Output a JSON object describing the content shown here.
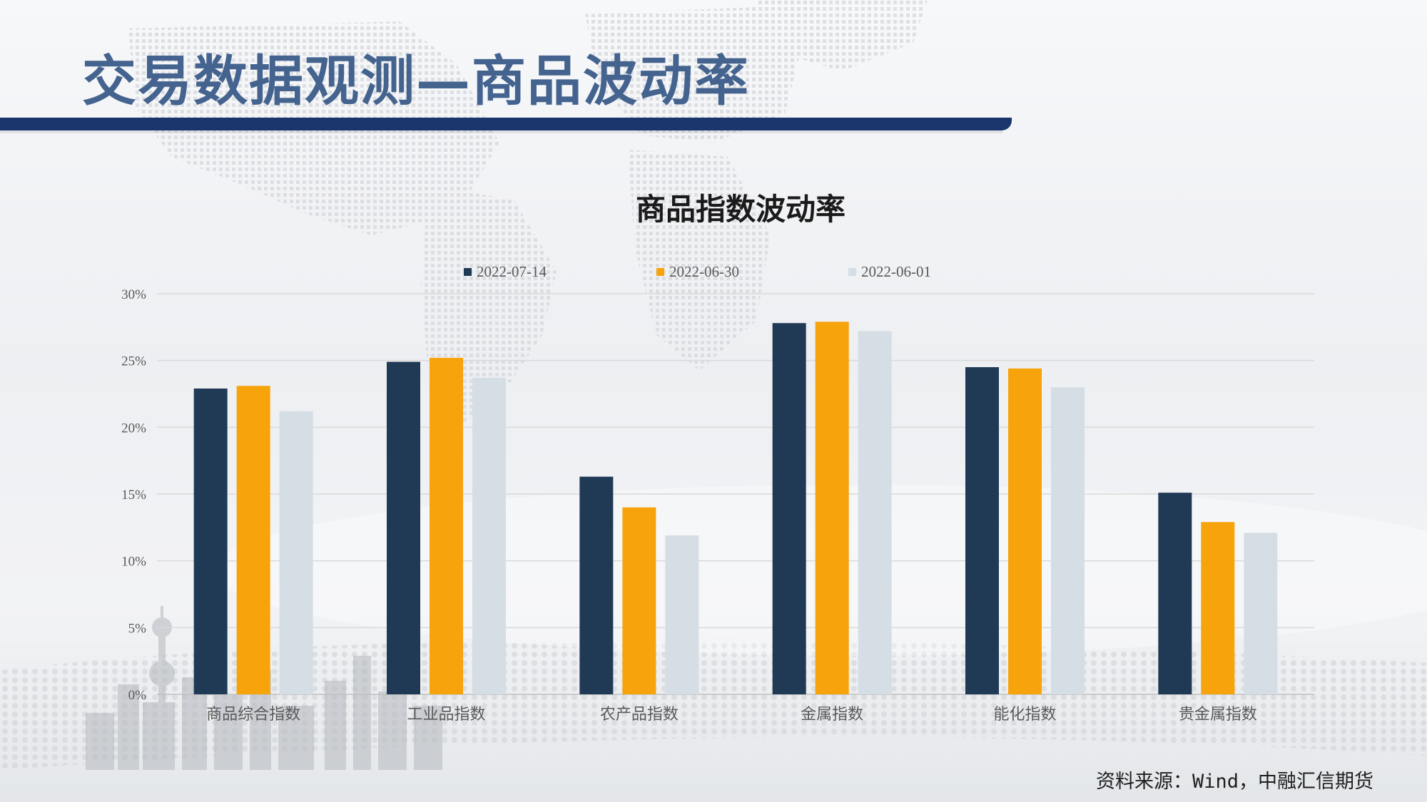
{
  "page": {
    "title": "交易数据观测—商品波动率",
    "source_note": "资料来源：Wind，中融汇信期货"
  },
  "colors": {
    "title_text": "#44638f",
    "title_band": "#19356b",
    "series": [
      "#203a56",
      "#f7a30c",
      "#d5dde5"
    ],
    "gridline": "#d9d9d9",
    "axis_text": "#595959"
  },
  "chart_data": {
    "type": "bar",
    "title": "商品指数波动率",
    "categories": [
      "商品综合指数",
      "工业品指数",
      "农产品指数",
      "金属指数",
      "能化指数",
      "贵金属指数"
    ],
    "series": [
      {
        "name": "2022-07-14",
        "values": [
          22.9,
          24.9,
          16.3,
          27.8,
          24.5,
          15.1
        ]
      },
      {
        "name": "2022-06-30",
        "values": [
          23.1,
          25.2,
          14.0,
          27.9,
          24.4,
          12.9
        ]
      },
      {
        "name": "2022-06-01",
        "values": [
          21.2,
          23.7,
          11.9,
          27.2,
          23.0,
          12.1
        ]
      }
    ],
    "y_ticks": [
      "0%",
      "5%",
      "10%",
      "15%",
      "20%",
      "25%",
      "30%"
    ],
    "ylim": [
      0,
      30
    ],
    "grid": true,
    "legend_position": "top"
  }
}
